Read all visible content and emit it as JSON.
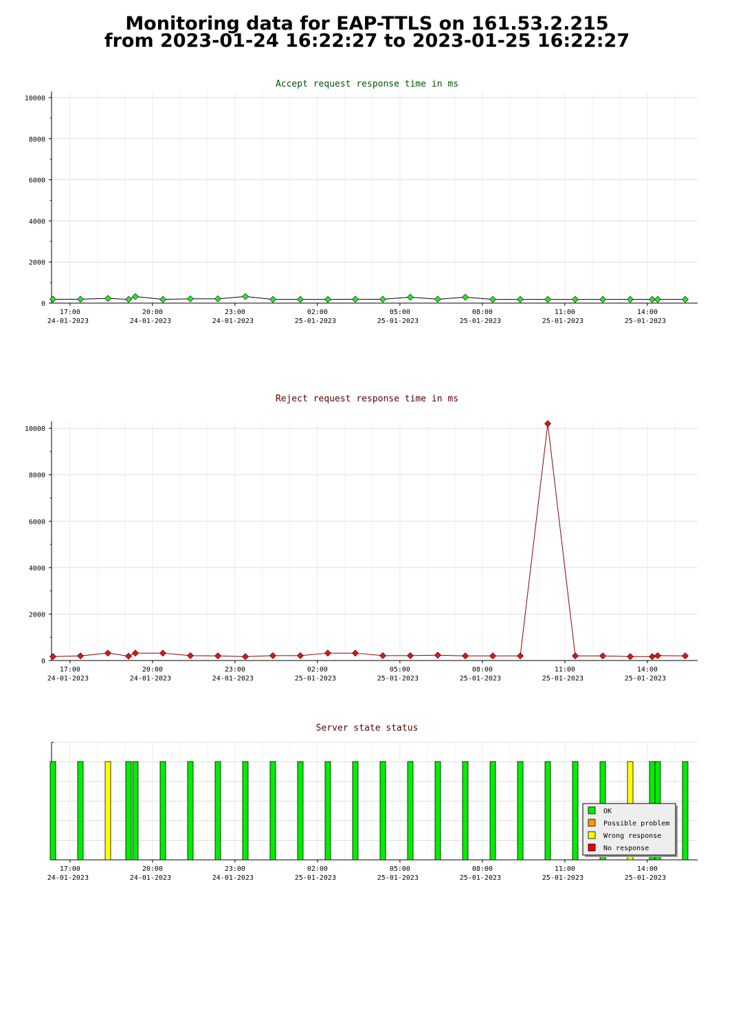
{
  "page": {
    "title_line1": "Monitoring data for EAP-TTLS on 161.53.2.215",
    "title_line2": "from 2023-01-24 16:22:27 to 2023-01-25 16:22:27"
  },
  "colors": {
    "accept_title": "#005500",
    "reject_title": "#550000",
    "status_title": "#550000",
    "ok": "#00ee00",
    "possible_problem": "#ff9900",
    "wrong_response": "#ffff00",
    "no_response": "#ee0000",
    "accept_marker": "#22ee22",
    "reject_marker": "#ee1111",
    "reject_line": "#880000",
    "accept_line": "#000000",
    "grid": "#dddddd"
  },
  "x_ticks": [
    {
      "time": "17:00",
      "date": "24-01-2023",
      "h": 0.622
    },
    {
      "time": "20:00",
      "date": "24-01-2023",
      "h": 3.622
    },
    {
      "time": "23:00",
      "date": "24-01-2023",
      "h": 6.622
    },
    {
      "time": "02:00",
      "date": "25-01-2023",
      "h": 9.622
    },
    {
      "time": "05:00",
      "date": "25-01-2023",
      "h": 12.622
    },
    {
      "time": "08:00",
      "date": "25-01-2023",
      "h": 15.622
    },
    {
      "time": "11:00",
      "date": "25-01-2023",
      "h": 18.622
    },
    {
      "time": "14:00",
      "date": "25-01-2023",
      "h": 21.622
    }
  ],
  "chart_data": [
    {
      "type": "line",
      "title": "Accept request response time in ms",
      "ylim": [
        0,
        10300
      ],
      "yticks": [
        0,
        2000,
        4000,
        6000,
        8000,
        10000
      ],
      "grid": true,
      "points": [
        [
          0.0,
          190
        ],
        [
          1.0,
          190
        ],
        [
          2.0,
          230
        ],
        [
          2.75,
          180
        ],
        [
          3.0,
          320
        ],
        [
          4.0,
          180
        ],
        [
          5.0,
          210
        ],
        [
          6.0,
          210
        ],
        [
          7.0,
          320
        ],
        [
          8.0,
          180
        ],
        [
          9.0,
          180
        ],
        [
          10.0,
          180
        ],
        [
          11.0,
          190
        ],
        [
          12.0,
          190
        ],
        [
          13.0,
          290
        ],
        [
          14.0,
          190
        ],
        [
          15.0,
          290
        ],
        [
          16.0,
          180
        ],
        [
          17.0,
          180
        ],
        [
          18.0,
          180
        ],
        [
          19.0,
          180
        ],
        [
          20.0,
          180
        ],
        [
          21.0,
          180
        ],
        [
          21.8,
          180
        ],
        [
          22.0,
          180
        ],
        [
          23.0,
          180
        ]
      ]
    },
    {
      "type": "line",
      "title": "Reject request response time in ms",
      "ylim": [
        0,
        10300
      ],
      "yticks": [
        0,
        2000,
        4000,
        6000,
        8000,
        10000
      ],
      "grid": true,
      "points": [
        [
          0.0,
          170
        ],
        [
          1.0,
          200
        ],
        [
          2.0,
          320
        ],
        [
          2.75,
          190
        ],
        [
          3.0,
          320
        ],
        [
          4.0,
          320
        ],
        [
          5.0,
          210
        ],
        [
          6.0,
          200
        ],
        [
          7.0,
          170
        ],
        [
          8.0,
          210
        ],
        [
          9.0,
          210
        ],
        [
          10.0,
          320
        ],
        [
          11.0,
          320
        ],
        [
          12.0,
          210
        ],
        [
          13.0,
          210
        ],
        [
          14.0,
          230
        ],
        [
          15.0,
          200
        ],
        [
          16.0,
          200
        ],
        [
          17.0,
          200
        ],
        [
          18.0,
          10200
        ],
        [
          19.0,
          200
        ],
        [
          20.0,
          200
        ],
        [
          21.0,
          170
        ],
        [
          21.8,
          170
        ],
        [
          22.0,
          210
        ],
        [
          23.0,
          200
        ]
      ]
    },
    {
      "type": "bar",
      "title": "Server state status",
      "grid": true,
      "statuses": [
        [
          0.0,
          "ok"
        ],
        [
          1.0,
          "ok"
        ],
        [
          2.0,
          "wrong_response"
        ],
        [
          2.75,
          "ok"
        ],
        [
          3.0,
          "ok"
        ],
        [
          4.0,
          "ok"
        ],
        [
          5.0,
          "ok"
        ],
        [
          6.0,
          "ok"
        ],
        [
          7.0,
          "ok"
        ],
        [
          8.0,
          "ok"
        ],
        [
          9.0,
          "ok"
        ],
        [
          10.0,
          "ok"
        ],
        [
          11.0,
          "ok"
        ],
        [
          12.0,
          "ok"
        ],
        [
          13.0,
          "ok"
        ],
        [
          14.0,
          "ok"
        ],
        [
          15.0,
          "ok"
        ],
        [
          16.0,
          "ok"
        ],
        [
          17.0,
          "ok"
        ],
        [
          18.0,
          "ok"
        ],
        [
          19.0,
          "ok"
        ],
        [
          20.0,
          "ok"
        ],
        [
          21.0,
          "wrong_response"
        ],
        [
          21.8,
          "ok"
        ],
        [
          22.0,
          "ok"
        ],
        [
          23.0,
          "ok"
        ]
      ],
      "legend_position": "bottom-right",
      "legend": [
        {
          "key": "ok",
          "label": "OK"
        },
        {
          "key": "possible_problem",
          "label": "Possible problem"
        },
        {
          "key": "wrong_response",
          "label": "Wrong response"
        },
        {
          "key": "no_response",
          "label": "No response"
        }
      ]
    }
  ]
}
